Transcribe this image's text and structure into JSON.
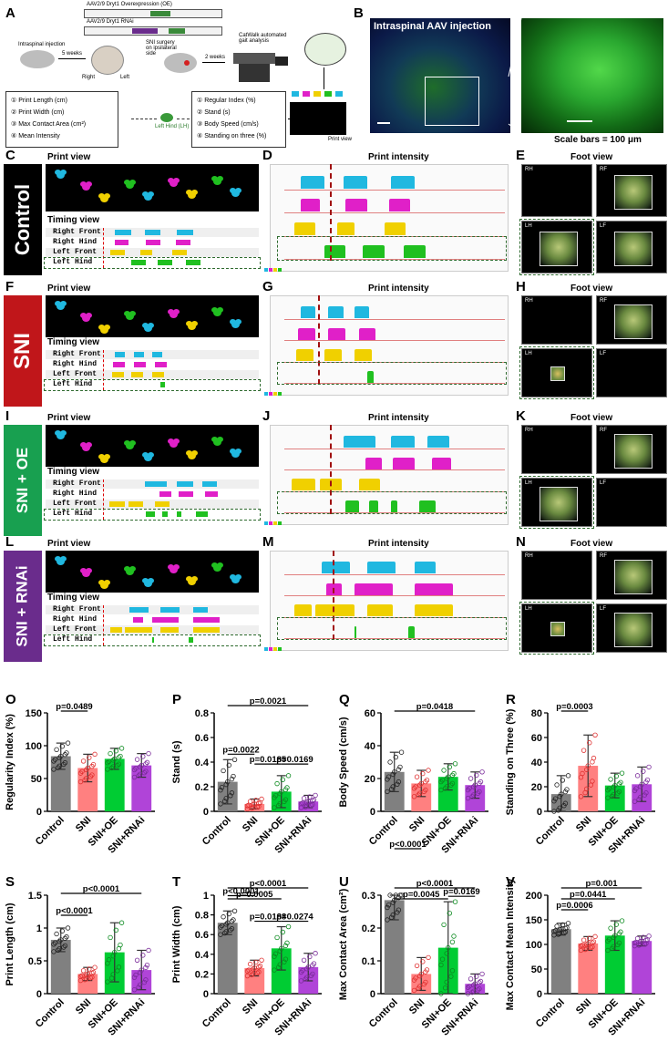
{
  "panels": {
    "A": "A",
    "B": "B",
    "C": "C",
    "D": "D",
    "E": "E",
    "F": "F",
    "G": "G",
    "H": "H",
    "I": "I",
    "J": "J",
    "K": "K",
    "L": "L",
    "M": "M",
    "N": "N",
    "O": "O",
    "P": "P",
    "Q": "Q",
    "R": "R",
    "S": "S",
    "T": "T",
    "U": "U",
    "V": "V"
  },
  "schematic": {
    "vector_oe": "AAV2/9 Dryt1 Overexpression (OE)",
    "vector_rnai": "AAV2/9 Dryt1 RNAi",
    "intraspinal": "Intraspinal injection",
    "weeks5": "5 weeks",
    "sni_surgery": "SNI surgery on ipsilateral side",
    "weeks2": "2 weeks",
    "catwalk": "CatWalk automated gait analysis",
    "right": "Right",
    "left": "Left",
    "left_hind": "Left Hind (LH)",
    "params_left": [
      "① Print Length (cm)",
      "② Print Width (cm)",
      "③ Max Contact Area (cm²)",
      "④ Mean Intensity"
    ],
    "params_right": [
      "① Regular Index (%)",
      "② Stand (s)",
      "③ Body Speed (cm/s)",
      "④ Standing on three (%)"
    ],
    "print_view": "Print view"
  },
  "micro": {
    "title": "Intraspinal AAV injection",
    "scale": "Scale bars = 100 μm"
  },
  "rows": [
    {
      "label": "Control",
      "color": "#000000"
    },
    {
      "label": "SNI",
      "color": "#c0161a"
    },
    {
      "label": "SNI + OE",
      "color": "#18a050"
    },
    {
      "label": "SNI + RNAi",
      "color": "#6a2c8c"
    }
  ],
  "titles": {
    "print_view": "Print view",
    "timing_view": "Timing view",
    "print_intensity": "Print intensity",
    "foot_view": "Foot view"
  },
  "timing_labels": [
    "Right Front",
    "Right Hind",
    "Left Front",
    "Left Hind"
  ],
  "foot_labels": [
    "RH",
    "RF",
    "LH",
    "LF"
  ],
  "groups": [
    "Control",
    "SNI",
    "SNI+OE",
    "SNI+RNAi"
  ],
  "group_colors": [
    "#808080",
    "#ff8080",
    "#00cc33",
    "#b044d8"
  ],
  "charts": [
    {
      "id": "O",
      "ylabel": "Regularity Index (%)",
      "ylim": [
        0,
        150
      ],
      "ticks": [
        0,
        50,
        100,
        150
      ],
      "means": [
        84,
        66,
        80,
        70
      ],
      "sd": [
        20,
        21,
        16,
        18
      ],
      "pvals": [
        {
          "a": 0,
          "b": 1,
          "text": "p=0.0489"
        }
      ]
    },
    {
      "id": "P",
      "ylabel": "Stand (s)",
      "ylim": [
        0,
        0.8
      ],
      "ticks": [
        0,
        0.2,
        0.4,
        0.6,
        0.8
      ],
      "means": [
        0.24,
        0.06,
        0.16,
        0.08
      ],
      "sd": [
        0.18,
        0.04,
        0.13,
        0.05
      ],
      "pvals": [
        {
          "a": 0,
          "b": 3,
          "text": "p=0.0021"
        },
        {
          "a": 0,
          "b": 1,
          "text": "p=0.0022"
        },
        {
          "a": 1,
          "b": 2,
          "text": "p=0.0185"
        },
        {
          "a": 2,
          "b": 3,
          "text": "p=0.0169"
        }
      ]
    },
    {
      "id": "Q",
      "ylabel": "Body Speed (cm/s)",
      "ylim": [
        0,
        60
      ],
      "ticks": [
        0,
        20,
        40,
        60
      ],
      "means": [
        24,
        17,
        21,
        16
      ],
      "sd": [
        12,
        8,
        8,
        8
      ],
      "pvals": [
        {
          "a": 0,
          "b": 3,
          "text": "p=0.0418"
        }
      ]
    },
    {
      "id": "R",
      "ylabel": "Standing on Three (%)",
      "ylim": [
        0,
        80
      ],
      "ticks": [
        0,
        20,
        40,
        60,
        80
      ],
      "means": [
        14,
        37,
        21,
        22
      ],
      "sd": [
        15,
        25,
        10,
        14
      ],
      "pvals": [
        {
          "a": 0,
          "b": 1,
          "text": "p=0.0003"
        }
      ]
    },
    {
      "id": "S",
      "ylabel": "Print Length (cm)",
      "ylim": [
        0,
        1.5
      ],
      "ticks": [
        0,
        0.5,
        1.0,
        1.5
      ],
      "means": [
        0.82,
        0.3,
        0.63,
        0.36
      ],
      "sd": [
        0.18,
        0.1,
        0.45,
        0.3
      ],
      "pvals": [
        {
          "a": 0,
          "b": 3,
          "text": "p<0.0001"
        },
        {
          "a": 0,
          "b": 1,
          "text": "p<0.0001"
        }
      ]
    },
    {
      "id": "T",
      "ylabel": "Print Width (cm)",
      "ylim": [
        0,
        1.0
      ],
      "ticks": [
        0,
        0.2,
        0.4,
        0.6,
        0.8,
        1.0
      ],
      "means": [
        0.72,
        0.26,
        0.46,
        0.27
      ],
      "sd": [
        0.12,
        0.08,
        0.22,
        0.14
      ],
      "pvals": [
        {
          "a": 0,
          "b": 3,
          "text": "p<0.0001"
        },
        {
          "a": 0,
          "b": 2,
          "text": "p=0.0005"
        },
        {
          "a": 0,
          "b": 1,
          "text": "p<0.0001"
        },
        {
          "a": 1,
          "b": 2,
          "text": "p=0.0188"
        },
        {
          "a": 2,
          "b": 3,
          "text": "p=0.0274"
        }
      ]
    },
    {
      "id": "U",
      "ylabel": "Max Contact Area (cm²)",
      "ylim": [
        0,
        0.3
      ],
      "ticks": [
        0,
        0.1,
        0.2,
        0.3
      ],
      "means": [
        0.285,
        0.06,
        0.14,
        0.03
      ],
      "sd": [
        0.06,
        0.05,
        0.14,
        0.03
      ],
      "pvals": [
        {
          "a": 0,
          "b": 3,
          "text": "p<0.0001"
        },
        {
          "a": 0,
          "b": 2,
          "text": "p=0.0045"
        },
        {
          "a": 0,
          "b": 1,
          "text": "p<0.0001"
        },
        {
          "a": 2,
          "b": 3,
          "text": "p=0.0169"
        }
      ]
    },
    {
      "id": "V",
      "ylabel": "Max Contact Mean Intensity",
      "ylim": [
        0,
        200
      ],
      "ticks": [
        0,
        50,
        100,
        150,
        200
      ],
      "means": [
        131,
        102,
        118,
        107
      ],
      "sd": [
        12,
        14,
        30,
        10
      ],
      "pvals": [
        {
          "a": 0,
          "b": 3,
          "text": "p=0.001"
        },
        {
          "a": 0,
          "b": 2,
          "text": "p=0.0441"
        },
        {
          "a": 0,
          "b": 1,
          "text": "p=0.0006"
        }
      ]
    }
  ],
  "chart_data": [
    {
      "type": "bar",
      "title": "O",
      "ylabel": "Regularity Index (%)",
      "categories": [
        "Control",
        "SNI",
        "SNI+OE",
        "SNI+RNAi"
      ],
      "values": [
        84,
        66,
        80,
        70
      ],
      "ylim": [
        0,
        150
      ]
    },
    {
      "type": "bar",
      "title": "P",
      "ylabel": "Stand (s)",
      "categories": [
        "Control",
        "SNI",
        "SNI+OE",
        "SNI+RNAi"
      ],
      "values": [
        0.24,
        0.06,
        0.16,
        0.08
      ],
      "ylim": [
        0,
        0.8
      ]
    },
    {
      "type": "bar",
      "title": "Q",
      "ylabel": "Body Speed (cm/s)",
      "categories": [
        "Control",
        "SNI",
        "SNI+OE",
        "SNI+RNAi"
      ],
      "values": [
        24,
        17,
        21,
        16
      ],
      "ylim": [
        0,
        60
      ]
    },
    {
      "type": "bar",
      "title": "R",
      "ylabel": "Standing on Three (%)",
      "categories": [
        "Control",
        "SNI",
        "SNI+OE",
        "SNI+RNAi"
      ],
      "values": [
        14,
        37,
        21,
        22
      ],
      "ylim": [
        0,
        80
      ]
    },
    {
      "type": "bar",
      "title": "S",
      "ylabel": "Print Length (cm)",
      "categories": [
        "Control",
        "SNI",
        "SNI+OE",
        "SNI+RNAi"
      ],
      "values": [
        0.82,
        0.3,
        0.63,
        0.36
      ],
      "ylim": [
        0,
        1.5
      ]
    },
    {
      "type": "bar",
      "title": "T",
      "ylabel": "Print Width (cm)",
      "categories": [
        "Control",
        "SNI",
        "SNI+OE",
        "SNI+RNAi"
      ],
      "values": [
        0.72,
        0.26,
        0.46,
        0.27
      ],
      "ylim": [
        0,
        1.0
      ]
    },
    {
      "type": "bar",
      "title": "U",
      "ylabel": "Max Contact Area (cm²)",
      "categories": [
        "Control",
        "SNI",
        "SNI+OE",
        "SNI+RNAi"
      ],
      "values": [
        0.285,
        0.06,
        0.14,
        0.03
      ],
      "ylim": [
        0,
        0.3
      ]
    },
    {
      "type": "bar",
      "title": "V",
      "ylabel": "Max Contact Mean Intensity",
      "categories": [
        "Control",
        "SNI",
        "SNI+OE",
        "SNI+RNAi"
      ],
      "values": [
        131,
        102,
        118,
        107
      ],
      "ylim": [
        0,
        200
      ]
    }
  ]
}
